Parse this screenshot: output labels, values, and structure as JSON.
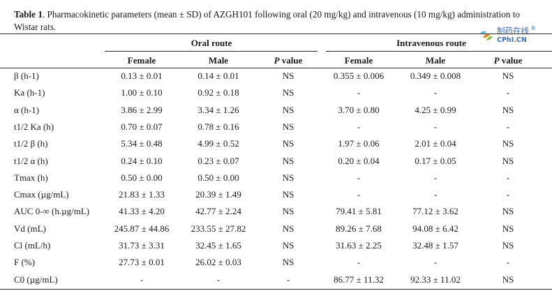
{
  "caption": {
    "label": "Table 1",
    "text": ". Pharmacokinetic parameters (mean ± SD) of AZGH101 following oral (20 mg/kg) and intravenous (10 mg/kg) administration to Wistar rats."
  },
  "watermark": {
    "logo_icon": "cphi-leaf-logo",
    "cn": "制药在线",
    "reg": "®",
    "en_a": "CPhI",
    "en_dot": ".",
    "en_b": "CN"
  },
  "header": {
    "oral_route": "Oral route",
    "iv_route": "Intravenous route",
    "female": "Female",
    "male": "Male",
    "p_letter": "P",
    "p_rest": " value"
  },
  "rows": [
    {
      "param": "β (h-1)",
      "oral_female": "0.13 ± 0.01",
      "oral_male": "0.14 ± 0.01",
      "oral_p": "NS",
      "iv_female": "0.355 ± 0.006",
      "iv_male": "0.349 ± 0.008",
      "iv_p": "NS"
    },
    {
      "param": "Ka (h-1)",
      "oral_female": "1.00 ± 0.10",
      "oral_male": "0.92 ± 0.18",
      "oral_p": "NS",
      "iv_female": "-",
      "iv_male": "-",
      "iv_p": "-"
    },
    {
      "param": "α (h-1)",
      "oral_female": "3.86 ± 2.99",
      "oral_male": "3.34 ± 1.26",
      "oral_p": "NS",
      "iv_female": "3.70 ± 0.80",
      "iv_male": "4.25 ± 0.99",
      "iv_p": "NS"
    },
    {
      "param": "t1/2 Ka (h)",
      "oral_female": "0.70 ± 0.07",
      "oral_male": "0.78 ± 0.16",
      "oral_p": "NS",
      "iv_female": "-",
      "iv_male": "-",
      "iv_p": "-"
    },
    {
      "param": "t1/2 β (h)",
      "oral_female": "5.34 ± 0.48",
      "oral_male": "4.99 ± 0.52",
      "oral_p": "NS",
      "iv_female": "1.97 ± 0.06",
      "iv_male": "2.01 ± 0.04",
      "iv_p": "NS"
    },
    {
      "param": "t1/2 α (h)",
      "oral_female": "0.24 ± 0.10",
      "oral_male": "0.23 ± 0.07",
      "oral_p": "NS",
      "iv_female": "0.20 ± 0.04",
      "iv_male": "0.17 ± 0.05",
      "iv_p": "NS"
    },
    {
      "param": "Tmax (h)",
      "oral_female": "0.50 ± 0.00",
      "oral_male": "0.50 ± 0.00",
      "oral_p": "NS",
      "iv_female": "-",
      "iv_male": "-",
      "iv_p": "-"
    },
    {
      "param": "Cmax (µg/mL)",
      "oral_female": "21.83 ± 1.33",
      "oral_male": "20.39 ± 1.49",
      "oral_p": "NS",
      "iv_female": "-",
      "iv_male": "-",
      "iv_p": "-"
    },
    {
      "param": "AUC 0-∞ (h.µg/mL)",
      "oral_female": "41.33 ± 4.20",
      "oral_male": "42.77 ± 2.24",
      "oral_p": "NS",
      "iv_female": "79.41 ± 5.81",
      "iv_male": "77.12 ± 3.62",
      "iv_p": "NS"
    },
    {
      "param": "Vd (mL)",
      "oral_female": "245.87 ± 44.86",
      "oral_male": "233.55 ± 27.82",
      "oral_p": "NS",
      "iv_female": "89.26 ± 7.68",
      "iv_male": "94.08 ± 6.42",
      "iv_p": "NS"
    },
    {
      "param": "Cl (mL/h)",
      "oral_female": "31.73 ± 3.31",
      "oral_male": "32.45 ± 1.65",
      "oral_p": "NS",
      "iv_female": "31.63 ± 2.25",
      "iv_male": "32.48 ± 1.57",
      "iv_p": "NS"
    },
    {
      "param": "F (%)",
      "oral_female": "27.73 ± 0.01",
      "oral_male": "26.02 ± 0.03",
      "oral_p": "NS",
      "iv_female": "-",
      "iv_male": "-",
      "iv_p": "-"
    },
    {
      "param": "C0 (µg/mL)",
      "oral_female": "-",
      "oral_male": "-",
      "oral_p": "-",
      "iv_female": "86.77 ± 11.32",
      "iv_male": "92.33 ± 11.02",
      "iv_p": "NS"
    }
  ]
}
